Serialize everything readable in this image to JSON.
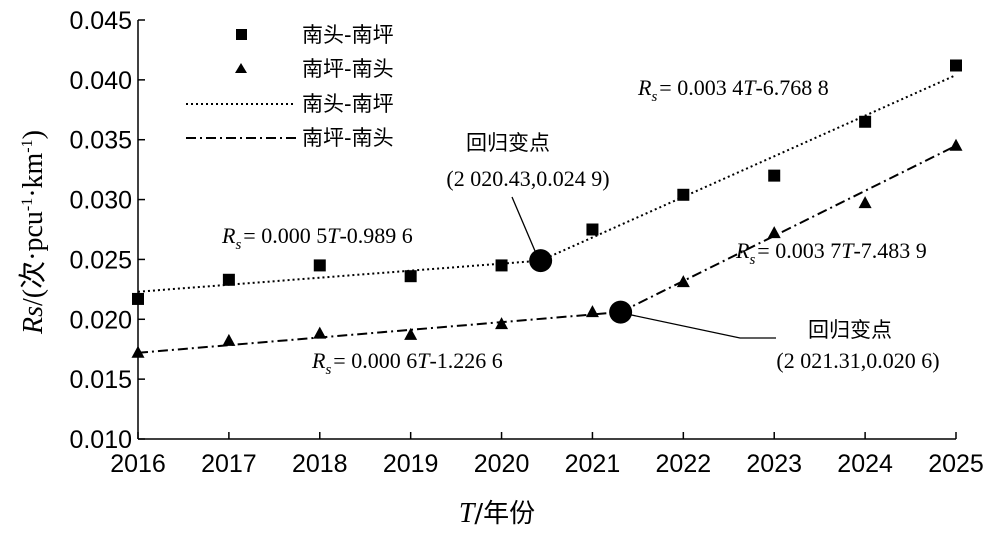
{
  "chart_data": {
    "type": "scatter",
    "title": "",
    "xlabel": "T/年份",
    "xlabel_parts": {
      "var": "T",
      "rest": "/年份"
    },
    "ylabel": "Rs/(次·pcu⁻¹·km⁻¹)",
    "ylabel_parts": {
      "var": "Rs",
      "rest": "/(次·pcu",
      "sup1": "-1",
      "mid": "·km",
      "sup2": "-1",
      "end": ")"
    },
    "x": [
      2016,
      2017,
      2018,
      2019,
      2020,
      2021,
      2022,
      2023,
      2024,
      2025
    ],
    "xlim": [
      2016,
      2025
    ],
    "ylim": [
      0.01,
      0.045
    ],
    "x_ticks": [
      "2016",
      "2017",
      "2018",
      "2019",
      "2020",
      "2021",
      "2022",
      "2023",
      "2024",
      "2025"
    ],
    "y_ticks": [
      {
        "value": 0.01,
        "label": "0.010"
      },
      {
        "value": 0.015,
        "label": "0.015"
      },
      {
        "value": 0.02,
        "label": "0.020"
      },
      {
        "value": 0.025,
        "label": "0.025"
      },
      {
        "value": 0.03,
        "label": "0.030"
      },
      {
        "value": 0.035,
        "label": "0.035"
      },
      {
        "value": 0.04,
        "label": "0.040"
      },
      {
        "value": 0.045,
        "label": "0.045"
      }
    ],
    "grid": false,
    "legend_position": "top-left",
    "series": [
      {
        "name": "南头-南坪",
        "marker": "square",
        "values": [
          0.0217,
          0.0233,
          0.0245,
          0.0236,
          0.0245,
          0.0275,
          0.0304,
          0.032,
          0.0365,
          0.0412
        ]
      },
      {
        "name": "南坪-南头",
        "marker": "triangle",
        "values": [
          0.0172,
          0.0182,
          0.0188,
          0.0187,
          0.0196,
          0.0206,
          0.0231,
          0.0272,
          0.0297,
          0.0345
        ]
      }
    ],
    "fit_lines": [
      {
        "name": "南头-南坪",
        "style": "dotted",
        "segments": [
          {
            "x": [
              2016,
              2020.43
            ],
            "y": [
              0.0223,
              0.0249
            ]
          },
          {
            "x": [
              2020.43,
              2025
            ],
            "y": [
              0.0249,
              0.0404
            ]
          }
        ]
      },
      {
        "name": "南坪-南头",
        "style": "dash-dot",
        "segments": [
          {
            "x": [
              2016,
              2021.31
            ],
            "y": [
              0.0172,
              0.0206
            ]
          },
          {
            "x": [
              2021.31,
              2025
            ],
            "y": [
              0.0206,
              0.0345
            ]
          }
        ]
      }
    ],
    "change_points": [
      {
        "x": 2020.43,
        "y": 0.0249,
        "label_line1": "回归变点",
        "label_line2": "(2 020.43,0.024 9)"
      },
      {
        "x": 2021.31,
        "y": 0.0206,
        "label_line1": "回归变点",
        "label_line2": "(2 021.31,0.020 6)"
      }
    ],
    "equations": [
      {
        "pre": "R",
        "sub": "s",
        "a": "= 0.003 4",
        "t": "T",
        "b": "-6.768 8"
      },
      {
        "pre": "R",
        "sub": "s",
        "a": "= 0.000 5",
        "t": "T",
        "b": "-0.989 6"
      },
      {
        "pre": "R",
        "sub": "s",
        "a": "= 0.003 7",
        "t": "T",
        "b": "-7.483 9"
      },
      {
        "pre": "R",
        "sub": "s",
        "a": "= 0.000 6",
        "t": "T",
        "b": "-1.226 6"
      }
    ]
  }
}
